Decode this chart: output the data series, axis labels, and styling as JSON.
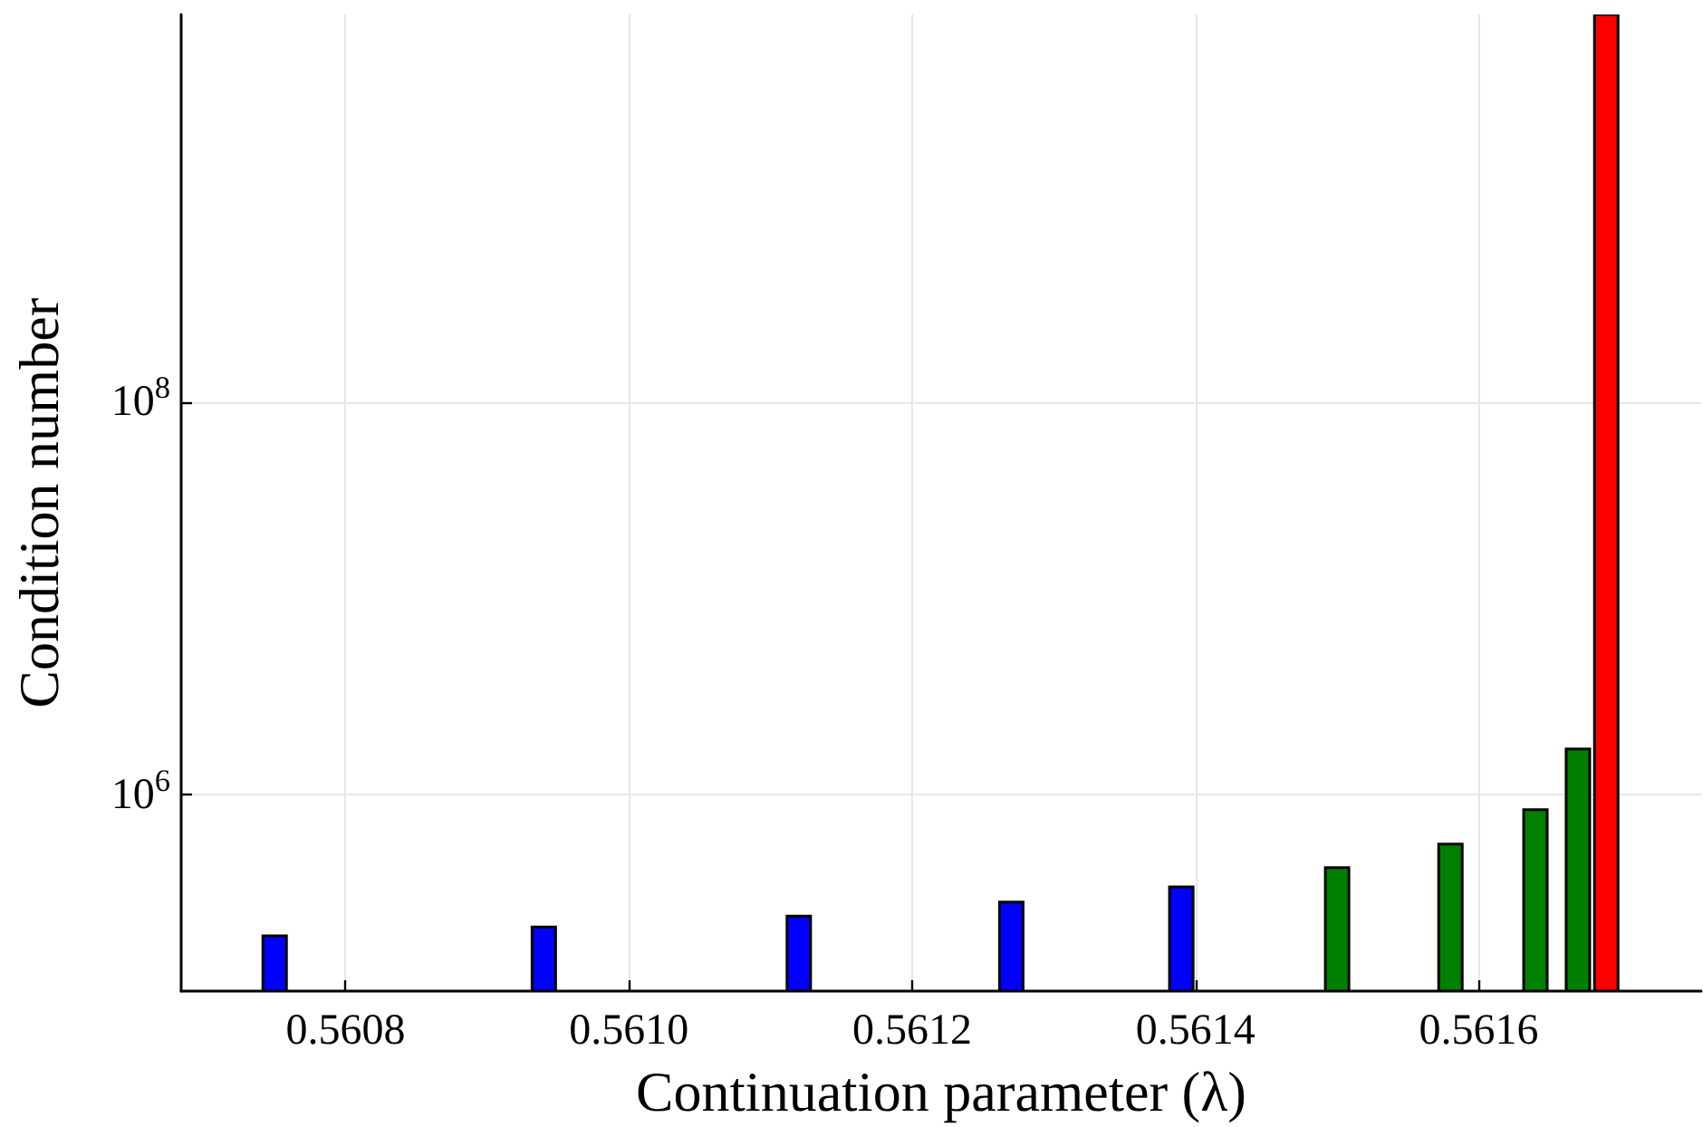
{
  "chart_data": {
    "type": "bar",
    "xlabel": "Continuation parameter (λ)",
    "ylabel": "Condition number",
    "x": [
      0.56075,
      0.56094,
      0.56112,
      0.56127,
      0.56139,
      0.5615,
      0.56158,
      0.56164,
      0.56167,
      0.56169
    ],
    "values": [
      191000,
      212000,
      241000,
      284000,
      339000,
      425000,
      560000,
      840000,
      1710000,
      9400000000
    ],
    "colors": [
      "#0000ff",
      "#0000ff",
      "#0000ff",
      "#0000ff",
      "#0000ff",
      "#008000",
      "#008000",
      "#008000",
      "#008000",
      "#ff0000"
    ],
    "xlim": [
      0.560684,
      0.561757
    ],
    "xticks": [
      0.5608,
      {
        "value": 0.561,
        "label": "0.5610"
      },
      0.5612,
      0.5614,
      0.5616
    ],
    "ylim": [
      100000,
      9400000000
    ],
    "yticks": [
      {
        "value": 1000000,
        "label": "10$^{6}$"
      },
      {
        "value": 100000000,
        "label": "10$^{8}$"
      }
    ],
    "log": "y",
    "grid": true
  }
}
